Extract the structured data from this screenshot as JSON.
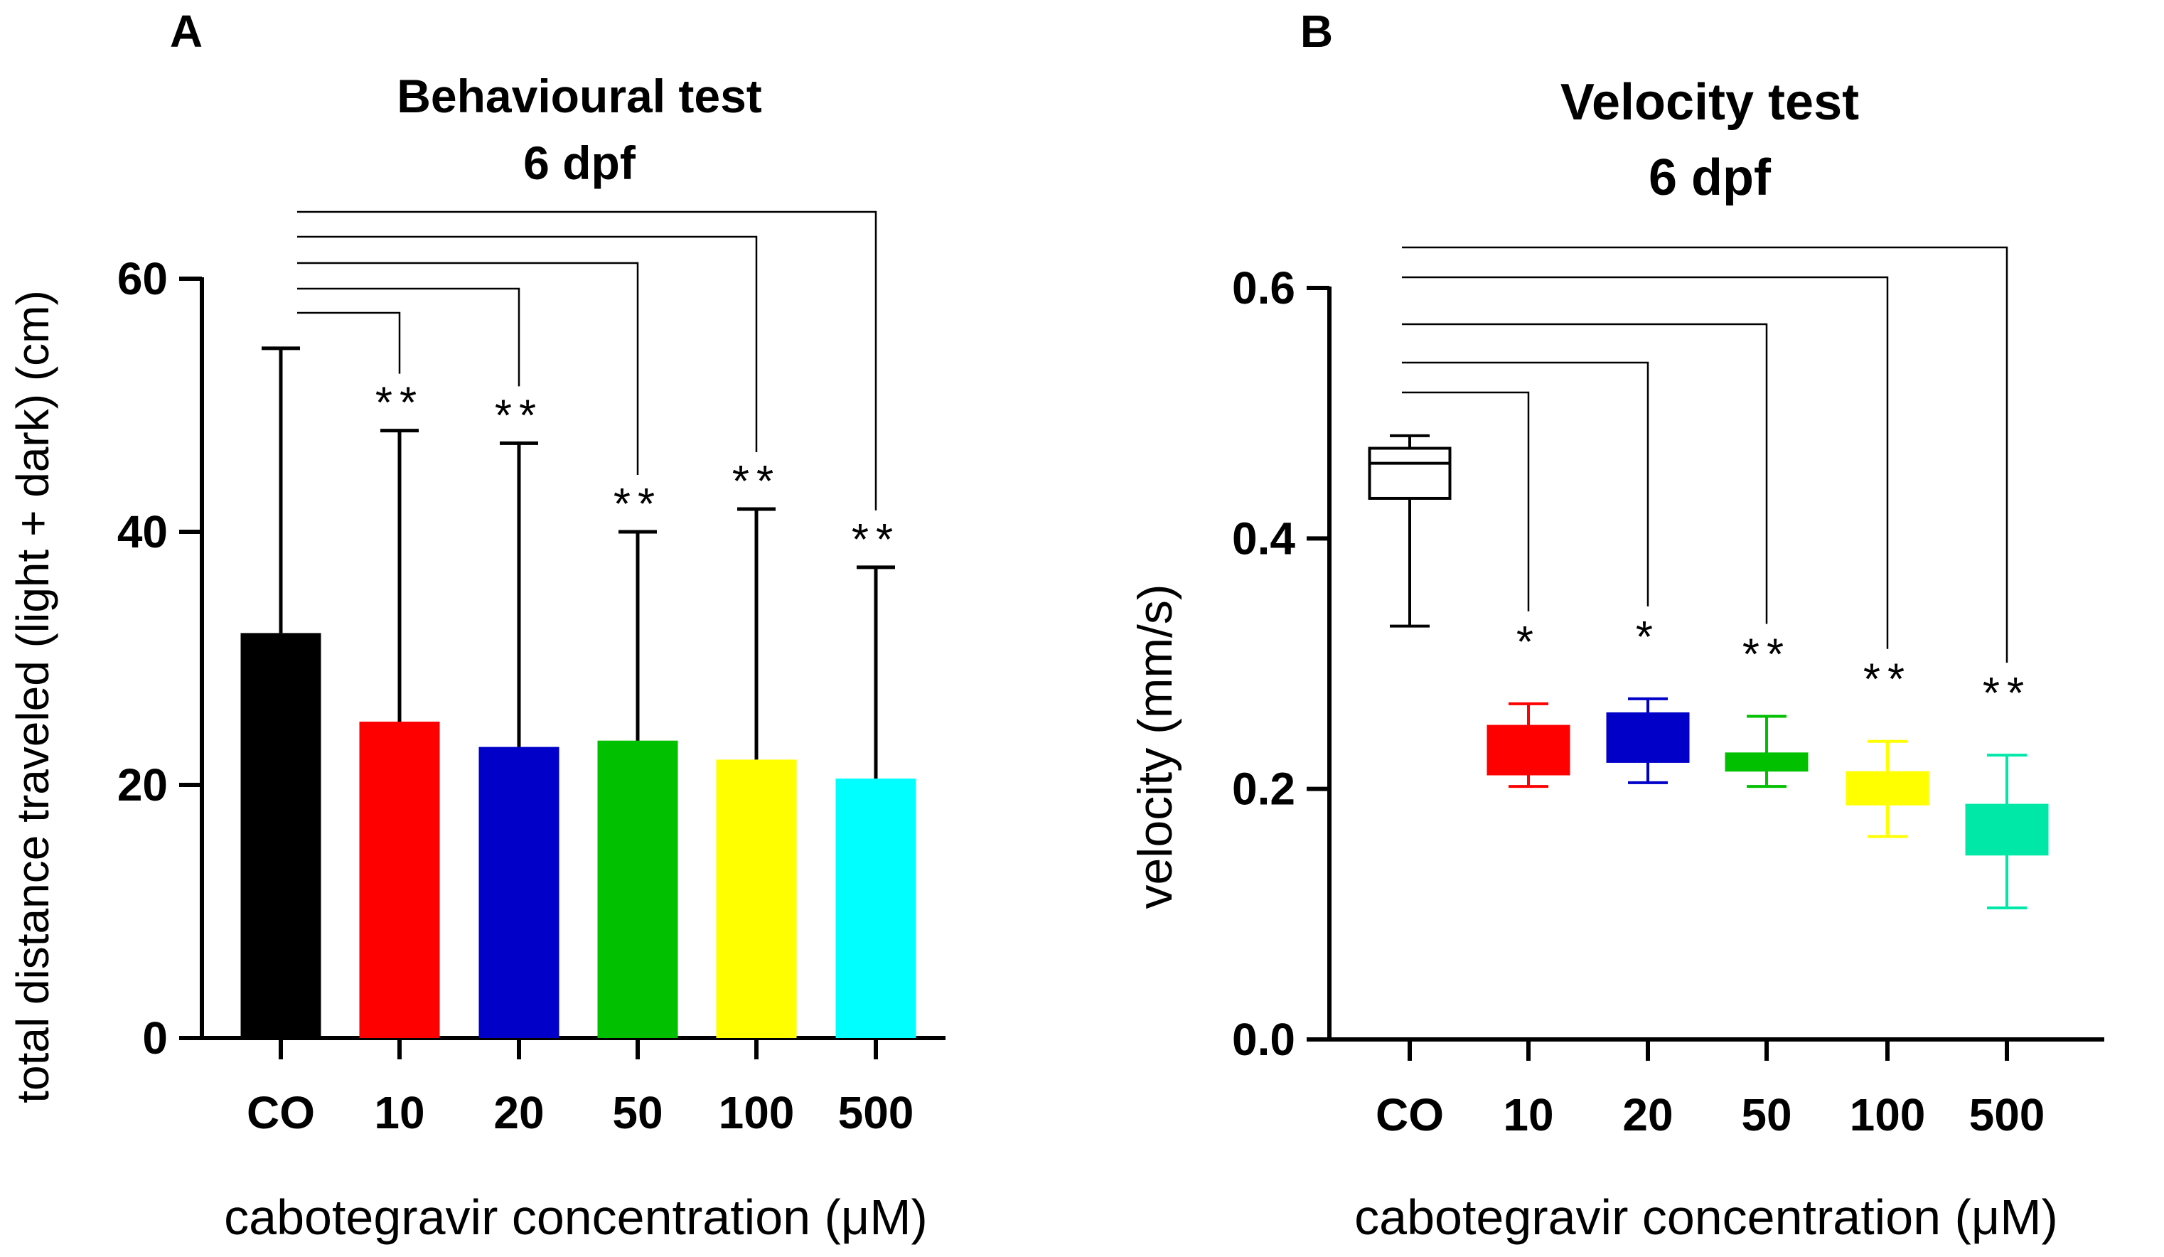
{
  "colors": {
    "CO": "#000000",
    "c10": "#ff0000",
    "c20": "#0000c8",
    "c50": "#00c000",
    "c100": "#ffff00",
    "c500": "#00ffff",
    "box500": "#00e8a8"
  },
  "chart_data": [
    {
      "panel_label": "A",
      "type": "bar",
      "title": "Behavioural test",
      "subtitle": "6 dpf",
      "xlabel": "cabotegravir concentration (μM)",
      "ylabel": "total distance traveled (light + dark) (cm)",
      "ylim": [
        0,
        60
      ],
      "yticks": [
        0,
        20,
        40,
        60
      ],
      "categories": [
        "CO",
        "10",
        "20",
        "50",
        "100",
        "500"
      ],
      "values": [
        32,
        25,
        23,
        23.5,
        22,
        20.5
      ],
      "error_upper": [
        54.5,
        48,
        47,
        40,
        41.8,
        37.2
      ],
      "bar_colors": [
        "#000000",
        "#ff0000",
        "#0000c8",
        "#00c000",
        "#ffff00",
        "#00ffff"
      ],
      "significance": [
        "",
        "**",
        "**",
        "**",
        "**",
        "**"
      ]
    },
    {
      "panel_label": "B",
      "type": "box",
      "title": "Velocity test",
      "subtitle": "6 dpf",
      "xlabel": "cabotegravir concentration (μM)",
      "ylabel": "velocity (mm/s)",
      "ylim": [
        0,
        0.6
      ],
      "yticks": [
        "0.0",
        "0.2",
        "0.4",
        "0.6"
      ],
      "categories": [
        "CO",
        "10",
        "20",
        "50",
        "100",
        "500"
      ],
      "boxes": [
        {
          "min": 0.33,
          "q1": 0.432,
          "median": 0.46,
          "q3": 0.472,
          "max": 0.482
        },
        {
          "min": 0.202,
          "q1": 0.212,
          "median": 0.23,
          "q3": 0.25,
          "max": 0.268
        },
        {
          "min": 0.205,
          "q1": 0.222,
          "median": 0.255,
          "q3": 0.26,
          "max": 0.272
        },
        {
          "min": 0.202,
          "q1": 0.215,
          "median": 0.225,
          "q3": 0.228,
          "max": 0.258
        },
        {
          "min": 0.162,
          "q1": 0.188,
          "median": 0.2,
          "q3": 0.213,
          "max": 0.238
        },
        {
          "min": 0.105,
          "q1": 0.148,
          "median": 0.16,
          "q3": 0.187,
          "max": 0.227
        }
      ],
      "box_colors": [
        "#ffffff",
        "#ff0000",
        "#0000c8",
        "#00c000",
        "#ffff00",
        "#00e8a8"
      ],
      "whisker_colors": [
        "#000000",
        "#ff0000",
        "#0000c8",
        "#00c000",
        "#ffff00",
        "#00e8a8"
      ],
      "significance": [
        "",
        "*",
        "*",
        "**",
        "**",
        "**"
      ]
    }
  ]
}
